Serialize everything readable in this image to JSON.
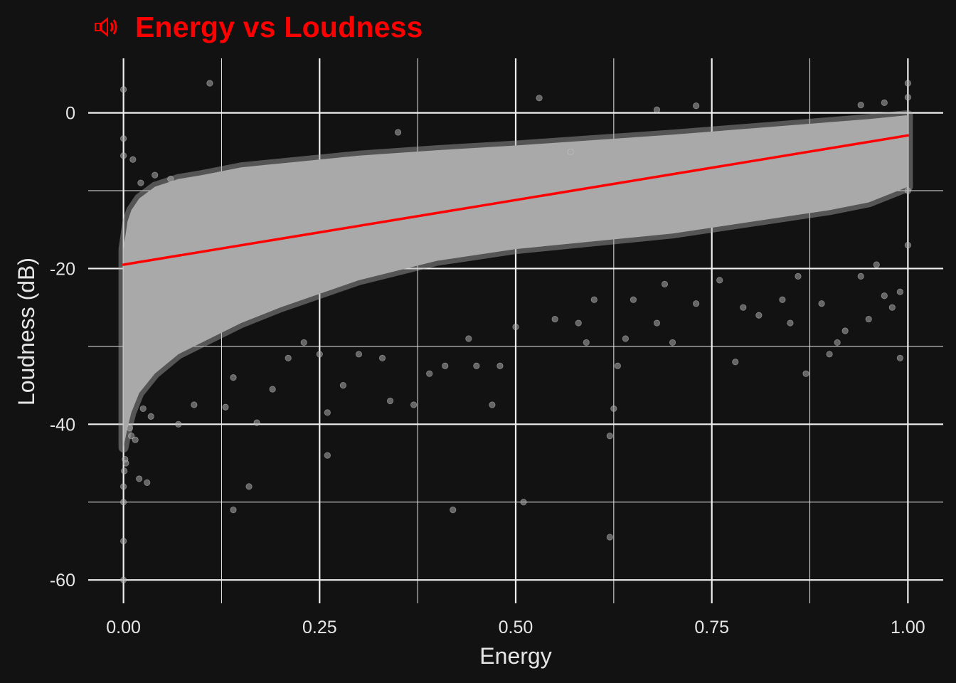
{
  "chart_data": {
    "type": "scatter",
    "title": "Energy vs Loudness",
    "title_icon": "speaker-icon",
    "xlabel": "Energy",
    "ylabel": "Loudness (dB)",
    "xlim": [
      -0.045,
      1.045
    ],
    "ylim": [
      -63,
      7
    ],
    "x_ticks": [
      0.0,
      0.25,
      0.5,
      0.75,
      1.0
    ],
    "x_tick_labels": [
      "0.00",
      "0.25",
      "0.50",
      "0.75",
      "1.00"
    ],
    "y_ticks": [
      0,
      -20,
      -40,
      -60
    ],
    "y_tick_labels": [
      "0",
      "-20",
      "-40",
      "-60"
    ],
    "grid": true,
    "legend": "none",
    "trend_line": {
      "color": "#ff0000",
      "x": [
        0.0,
        1.0
      ],
      "y": [
        -19.5,
        -2.9
      ]
    },
    "band_upper": {
      "x": [
        0.0,
        0.005,
        0.01,
        0.02,
        0.04,
        0.07,
        0.1,
        0.15,
        0.2,
        0.3,
        0.4,
        0.5,
        0.6,
        0.7,
        0.8,
        0.9,
        0.95,
        1.0
      ],
      "y": [
        -17.5,
        -14.0,
        -12.5,
        -11.0,
        -9.5,
        -8.5,
        -8.0,
        -7.0,
        -6.5,
        -5.5,
        -4.8,
        -4.2,
        -3.5,
        -2.8,
        -2.0,
        -1.2,
        -0.8,
        -0.3
      ]
    },
    "band_lower": {
      "x": [
        1.0,
        0.95,
        0.9,
        0.8,
        0.7,
        0.6,
        0.5,
        0.4,
        0.3,
        0.2,
        0.15,
        0.1,
        0.07,
        0.04,
        0.02,
        0.01,
        0.005,
        0.0
      ],
      "y": [
        -9.5,
        -11.5,
        -12.5,
        -14.0,
        -15.5,
        -16.5,
        -17.5,
        -19.0,
        -21.5,
        -25.0,
        -27.0,
        -29.5,
        -31.0,
        -33.5,
        -36.0,
        -38.5,
        -40.5,
        -43.0
      ]
    },
    "series": [
      {
        "color": "#a9a9a9",
        "points": [
          [
            0.0,
            3.0
          ],
          [
            0.0,
            -3.3
          ],
          [
            0.0,
            -5.5
          ],
          [
            0.0,
            -48.0
          ],
          [
            0.0,
            -50.0
          ],
          [
            0.0,
            -55.0
          ],
          [
            0.0,
            -60.0
          ],
          [
            0.003,
            -45.0
          ],
          [
            0.002,
            -44.5
          ],
          [
            0.001,
            -46.0
          ],
          [
            0.01,
            -41.5
          ],
          [
            0.008,
            -40.5
          ],
          [
            0.015,
            -42.0
          ],
          [
            0.02,
            -47.0
          ],
          [
            0.03,
            -47.5
          ],
          [
            0.035,
            -39.0
          ],
          [
            0.025,
            -38.0
          ],
          [
            0.012,
            -6.0
          ],
          [
            0.022,
            -9.0
          ],
          [
            0.04,
            -8.0
          ],
          [
            0.06,
            -8.5
          ],
          [
            0.11,
            3.8
          ],
          [
            0.07,
            -40.0
          ],
          [
            0.09,
            -37.5
          ],
          [
            0.13,
            -37.8
          ],
          [
            0.14,
            -34.0
          ],
          [
            0.17,
            -39.8
          ],
          [
            0.19,
            -35.5
          ],
          [
            0.21,
            -31.5
          ],
          [
            0.23,
            -29.5
          ],
          [
            0.25,
            -31.0
          ],
          [
            0.26,
            -38.5
          ],
          [
            0.26,
            -44.0
          ],
          [
            0.28,
            -35.0
          ],
          [
            0.14,
            -51.0
          ],
          [
            0.33,
            -31.5
          ],
          [
            0.34,
            -37.0
          ],
          [
            0.37,
            -37.5
          ],
          [
            0.39,
            -33.5
          ],
          [
            0.41,
            -32.5
          ],
          [
            0.42,
            -51.0
          ],
          [
            0.45,
            -32.5
          ],
          [
            0.47,
            -37.5
          ],
          [
            0.48,
            -32.5
          ],
          [
            0.5,
            -27.5
          ],
          [
            0.53,
            1.9
          ],
          [
            0.55,
            -26.5
          ],
          [
            0.58,
            -27.0
          ],
          [
            0.59,
            -29.5
          ],
          [
            0.62,
            -41.5
          ],
          [
            0.62,
            -54.5
          ],
          [
            0.625,
            -38.0
          ],
          [
            0.63,
            -32.5
          ],
          [
            0.64,
            -29.0
          ],
          [
            0.65,
            -24.0
          ],
          [
            0.68,
            -27.0
          ],
          [
            0.7,
            -29.5
          ],
          [
            0.73,
            -24.5
          ],
          [
            0.76,
            -21.5
          ],
          [
            0.78,
            -32.0
          ],
          [
            0.79,
            -25.0
          ],
          [
            0.81,
            -26.0
          ],
          [
            0.84,
            -24.0
          ],
          [
            0.85,
            -27.0
          ],
          [
            0.87,
            -33.5
          ],
          [
            0.89,
            -24.5
          ],
          [
            0.9,
            -31.0
          ],
          [
            0.91,
            -29.5
          ],
          [
            0.92,
            -28.0
          ],
          [
            0.95,
            -26.5
          ],
          [
            0.97,
            -23.5
          ],
          [
            0.98,
            -25.0
          ],
          [
            0.99,
            -31.5
          ],
          [
            1.0,
            3.8
          ],
          [
            1.0,
            2.0
          ],
          [
            0.97,
            1.3
          ],
          [
            0.94,
            1.0
          ],
          [
            0.73,
            0.9
          ],
          [
            0.68,
            0.4
          ],
          [
            0.57,
            -5.0
          ],
          [
            0.35,
            -2.5
          ],
          [
            0.51,
            -50.0
          ],
          [
            0.16,
            -48.0
          ],
          [
            0.3,
            -31.0
          ],
          [
            0.44,
            -29.0
          ],
          [
            0.69,
            -22.0
          ],
          [
            0.94,
            -21.0
          ],
          [
            0.99,
            -23.0
          ],
          [
            0.96,
            -19.5
          ],
          [
            1.0,
            -10.0
          ],
          [
            1.0,
            -17.0
          ],
          [
            0.86,
            -21.0
          ],
          [
            0.6,
            -24.0
          ]
        ]
      }
    ]
  }
}
